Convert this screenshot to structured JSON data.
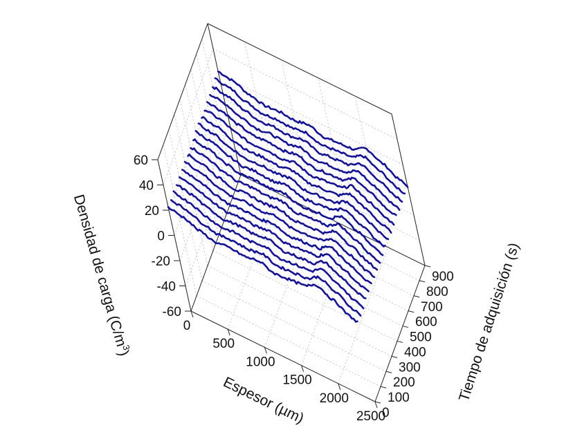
{
  "chart_data": {
    "type": "line",
    "chart_subtype": "3d-waterfall",
    "xlabel": "Espesor (µm)",
    "ylabel": "Tiempo de adquisición (s)",
    "zlabel": "Densidad de carga (C/m",
    "zlabel_sup": "3",
    "zlabel_close": ")",
    "xlim": [
      0,
      2500
    ],
    "ylim": [
      0,
      900
    ],
    "zlim": [
      -60,
      60
    ],
    "x_ticks": [
      "0",
      "500",
      "1000",
      "1500",
      "2000",
      "2500"
    ],
    "y_ticks": [
      "0",
      "100",
      "200",
      "300",
      "400",
      "500",
      "600",
      "700",
      "800",
      "900"
    ],
    "z_ticks": [
      "-60",
      "-40",
      "-20",
      "0",
      "20",
      "40",
      "60"
    ],
    "grid": true,
    "line_color": "#1010a8",
    "x": [
      0,
      200,
      400,
      600,
      800,
      1000,
      1200,
      1400,
      1600,
      1800,
      2000,
      2200,
      2400,
      2500
    ],
    "series_times": [
      0,
      50,
      100,
      150,
      200,
      250,
      300,
      350,
      400,
      450,
      500,
      550,
      600,
      650,
      700,
      750,
      800,
      850,
      900
    ],
    "series_profile": [
      22,
      20,
      15,
      12,
      13,
      12,
      14,
      10,
      11,
      12,
      18,
      12,
      5,
      3
    ]
  }
}
